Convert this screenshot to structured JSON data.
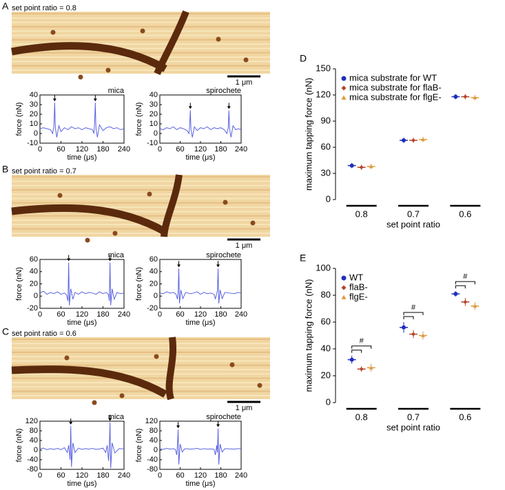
{
  "panels": [
    {
      "label": "A",
      "caption": "set point ratio = 0.8",
      "scale_bar": "1 μm"
    },
    {
      "label": "B",
      "caption": "set point ratio = 0.7",
      "scale_bar": "1 μm"
    },
    {
      "label": "C",
      "caption": "set point ratio = 0.6",
      "scale_bar": "1 μm"
    }
  ],
  "chart_data": [
    {
      "type": "line",
      "title": "mica",
      "xlabel": "time (μs)",
      "ylabel": "force (nN)",
      "xlim": [
        0,
        240
      ],
      "xticks": [
        0,
        60,
        120,
        180,
        240
      ],
      "ylim": [
        -10,
        40
      ],
      "yticks": [
        -10,
        0,
        10,
        20,
        30,
        40
      ],
      "x": [
        0,
        10,
        20,
        30,
        36,
        40,
        42,
        44,
        48,
        54,
        60,
        70,
        80,
        90,
        100,
        110,
        120,
        130,
        140,
        150,
        154,
        156,
        158,
        160,
        164,
        170,
        180,
        190,
        200,
        210,
        220,
        230,
        240
      ],
      "series": [
        {
          "color": "#5a62e0",
          "values": [
            5,
            6,
            5,
            4,
            0,
            8,
            32,
            6,
            -4,
            8,
            2,
            6,
            4,
            7,
            5,
            6,
            4,
            6,
            5,
            4,
            0,
            10,
            32,
            5,
            -4,
            9,
            3,
            6,
            7,
            5,
            6,
            4,
            5
          ]
        }
      ]
    },
    {
      "type": "line",
      "title": "spirochete",
      "xlabel": "time (μs)",
      "ylabel": "force (nN)",
      "xlim": [
        0,
        240
      ],
      "xticks": [
        0,
        60,
        120,
        180,
        240
      ],
      "ylim": [
        -10,
        40
      ],
      "yticks": [
        -10,
        0,
        10,
        20,
        30,
        40
      ],
      "x": [
        0,
        10,
        20,
        30,
        40,
        50,
        60,
        70,
        80,
        86,
        88,
        90,
        92,
        96,
        102,
        110,
        120,
        130,
        140,
        150,
        160,
        170,
        180,
        190,
        198,
        202,
        204,
        206,
        210,
        216,
        224,
        232,
        240
      ],
      "series": [
        {
          "color": "#5a62e0",
          "values": [
            5,
            4,
            6,
            5,
            7,
            4,
            6,
            5,
            3,
            0,
            8,
            24,
            4,
            -4,
            7,
            3,
            6,
            5,
            7,
            4,
            6,
            5,
            6,
            4,
            0,
            6,
            24,
            5,
            -4,
            8,
            4,
            5,
            4
          ]
        }
      ]
    },
    {
      "type": "line",
      "title": "mica",
      "xlabel": "time (μs)",
      "ylabel": "force (nN)",
      "xlim": [
        0,
        240
      ],
      "xticks": [
        0,
        60,
        120,
        180,
        240
      ],
      "ylim": [
        -20,
        60
      ],
      "yticks": [
        -20,
        0,
        20,
        40,
        60
      ],
      "x": [
        0,
        10,
        20,
        30,
        40,
        50,
        60,
        70,
        76,
        80,
        82,
        84,
        88,
        94,
        100,
        110,
        120,
        130,
        140,
        150,
        160,
        170,
        180,
        190,
        196,
        198,
        200,
        202,
        206,
        212,
        220,
        230,
        240
      ],
      "series": [
        {
          "color": "#5a62e0",
          "values": [
            5,
            8,
            3,
            6,
            4,
            7,
            3,
            5,
            2,
            -8,
            55,
            -15,
            12,
            -5,
            6,
            3,
            7,
            4,
            6,
            5,
            3,
            7,
            4,
            6,
            2,
            -8,
            55,
            -15,
            12,
            -5,
            6,
            4,
            5
          ]
        }
      ]
    },
    {
      "type": "line",
      "title": "spirochete",
      "xlabel": "time (μs)",
      "ylabel": "force (nN)",
      "xlim": [
        0,
        240
      ],
      "xticks": [
        0,
        60,
        120,
        180,
        240
      ],
      "ylim": [
        -20,
        60
      ],
      "yticks": [
        -20,
        0,
        20,
        40,
        60
      ],
      "x": [
        0,
        10,
        20,
        30,
        40,
        48,
        52,
        54,
        56,
        58,
        62,
        68,
        76,
        90,
        100,
        110,
        120,
        130,
        140,
        150,
        160,
        164,
        168,
        170,
        172,
        174,
        178,
        184,
        192,
        205,
        220,
        230,
        240
      ],
      "series": [
        {
          "color": "#5a62e0",
          "values": [
            5,
            4,
            7,
            5,
            6,
            3,
            -5,
            5,
            45,
            -12,
            10,
            -4,
            6,
            4,
            5,
            7,
            3,
            6,
            4,
            5,
            3,
            -5,
            5,
            8,
            45,
            -12,
            10,
            -4,
            6,
            5,
            4,
            6,
            5
          ]
        }
      ]
    },
    {
      "type": "line",
      "title": "mica",
      "xlabel": "time (μs)",
      "ylabel": "force (nN)",
      "xlim": [
        0,
        240
      ],
      "xticks": [
        0,
        60,
        120,
        180,
        240
      ],
      "ylim": [
        -80,
        120
      ],
      "yticks": [
        -80,
        -40,
        0,
        40,
        80,
        120
      ],
      "x": [
        0,
        10,
        20,
        30,
        40,
        50,
        60,
        70,
        78,
        82,
        86,
        88,
        90,
        94,
        100,
        110,
        120,
        130,
        140,
        150,
        160,
        170,
        180,
        188,
        192,
        196,
        198,
        200,
        202,
        206,
        214,
        226,
        240
      ],
      "series": [
        {
          "color": "#5a62e0",
          "values": [
            5,
            8,
            2,
            6,
            3,
            7,
            2,
            10,
            -10,
            20,
            -40,
            100,
            -70,
            30,
            -10,
            8,
            3,
            6,
            4,
            7,
            3,
            5,
            8,
            -10,
            20,
            -45,
            10,
            115,
            -75,
            30,
            -12,
            6,
            5
          ]
        }
      ]
    },
    {
      "type": "line",
      "title": "spirochete",
      "xlabel": "time (μs)",
      "ylabel": "force (nN)",
      "xlim": [
        0,
        240
      ],
      "xticks": [
        0,
        60,
        120,
        180,
        240
      ],
      "ylim": [
        -80,
        120
      ],
      "yticks": [
        -80,
        -40,
        0,
        40,
        80,
        120
      ],
      "x": [
        0,
        10,
        20,
        30,
        40,
        46,
        50,
        52,
        54,
        56,
        60,
        66,
        74,
        90,
        100,
        110,
        120,
        130,
        140,
        150,
        160,
        164,
        168,
        170,
        172,
        174,
        178,
        184,
        192,
        205,
        220,
        230,
        240
      ],
      "series": [
        {
          "color": "#5a62e0",
          "values": [
            5,
            3,
            7,
            4,
            6,
            2,
            -20,
            20,
            85,
            -60,
            25,
            -8,
            6,
            4,
            5,
            7,
            3,
            6,
            4,
            5,
            3,
            -20,
            20,
            -10,
            90,
            -60,
            25,
            -8,
            6,
            5,
            4,
            6,
            5
          ]
        }
      ]
    },
    {
      "type": "dot",
      "panel": "D",
      "xlabel": "set point ratio",
      "ylabel": "maximum tapping force (nN)",
      "categories": [
        "0.8",
        "0.7",
        "0.6"
      ],
      "ylim": [
        0,
        150
      ],
      "yticks": [
        0,
        30,
        60,
        90,
        120,
        150
      ],
      "series": [
        {
          "name": "mica substrate for WT",
          "color": "#1f2fbf",
          "marker": "circle",
          "values": [
            39,
            68,
            118
          ],
          "errors": [
            3,
            3,
            3
          ]
        },
        {
          "name": "mica substrate for flaB-",
          "color": "#b5432a",
          "marker": "diamond",
          "values": [
            37,
            68,
            118
          ],
          "errors": [
            3,
            3,
            3
          ]
        },
        {
          "name": "mica substrate for flgE-",
          "color": "#e09a3c",
          "marker": "triangle",
          "values": [
            38,
            69,
            117
          ],
          "errors": [
            3,
            3,
            3
          ]
        }
      ]
    },
    {
      "type": "dot",
      "panel": "E",
      "xlabel": "set point ratio",
      "ylabel": "maximum tapping force (nN)",
      "categories": [
        "0.8",
        "0.7",
        "0.6"
      ],
      "ylim": [
        0,
        100
      ],
      "yticks": [
        0,
        20,
        40,
        60,
        80,
        100
      ],
      "annotations": [
        "#",
        "#",
        "#"
      ],
      "series": [
        {
          "name": "WT",
          "color": "#1f2fbf",
          "marker": "circle",
          "values": [
            32,
            56,
            81
          ],
          "errors": [
            3,
            4,
            2
          ]
        },
        {
          "name": "flaB-",
          "color": "#b5432a",
          "marker": "diamond",
          "values": [
            25,
            51,
            75
          ],
          "errors": [
            2,
            3,
            3
          ]
        },
        {
          "name": "flgE-",
          "color": "#e09a3c",
          "marker": "triangle",
          "values": [
            26,
            50,
            72
          ],
          "errors": [
            3,
            3,
            3
          ]
        }
      ]
    }
  ]
}
